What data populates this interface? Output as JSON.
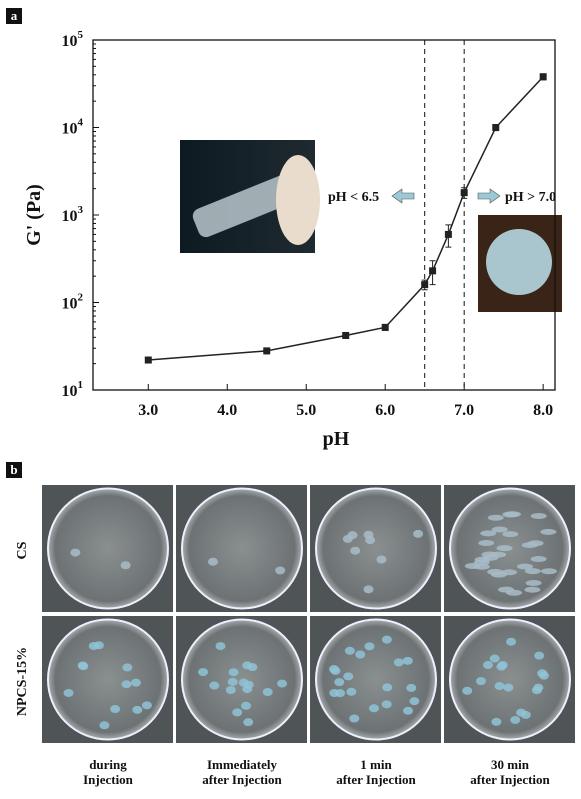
{
  "chart_data": {
    "type": "line",
    "panel_label": "a",
    "xlabel": "pH",
    "ylabel": "G' (Pa)",
    "x": [
      3.0,
      4.5,
      5.5,
      6.0,
      6.5,
      6.6,
      6.8,
      7.0,
      7.4,
      8.0
    ],
    "values": [
      22,
      28,
      42,
      52,
      160,
      230,
      600,
      1800,
      10000,
      38000
    ],
    "errors": [
      1.5,
      2,
      3,
      4,
      20,
      70,
      170,
      250,
      800,
      3000
    ],
    "color": "#222",
    "log_y": true,
    "xlim": [
      2.3,
      8.15
    ],
    "ylim": [
      10,
      100000
    ],
    "xticks": [
      {
        "value": 3,
        "label": "3.0"
      },
      {
        "value": 4,
        "label": "4.0"
      },
      {
        "value": 5,
        "label": "5.0"
      },
      {
        "value": 6,
        "label": "6.0"
      },
      {
        "value": 7,
        "label": "7.0"
      },
      {
        "value": 8,
        "label": "8.0"
      }
    ],
    "yticks": [
      {
        "value": 10,
        "label": "10",
        "exponent": "1"
      },
      {
        "value": 100,
        "label": "10",
        "exponent": "2"
      },
      {
        "value": 1000,
        "label": "10",
        "exponent": "3"
      },
      {
        "value": 10000,
        "label": "10",
        "exponent": "4"
      },
      {
        "value": 100000,
        "label": "10",
        "exponent": "5"
      }
    ],
    "thresholds": [
      6.5,
      7.0
    ],
    "annotations": [
      "pH < 6.5",
      "pH > 7.0"
    ]
  },
  "panel_b": {
    "label": "b",
    "rows": [
      "CS",
      "NPCS-15%"
    ],
    "columns": [
      [
        "during",
        "Injection"
      ],
      [
        "Immediately",
        "after Injection"
      ],
      [
        "1 min",
        "after Injection"
      ],
      [
        "30 min",
        "after Injection"
      ]
    ]
  }
}
